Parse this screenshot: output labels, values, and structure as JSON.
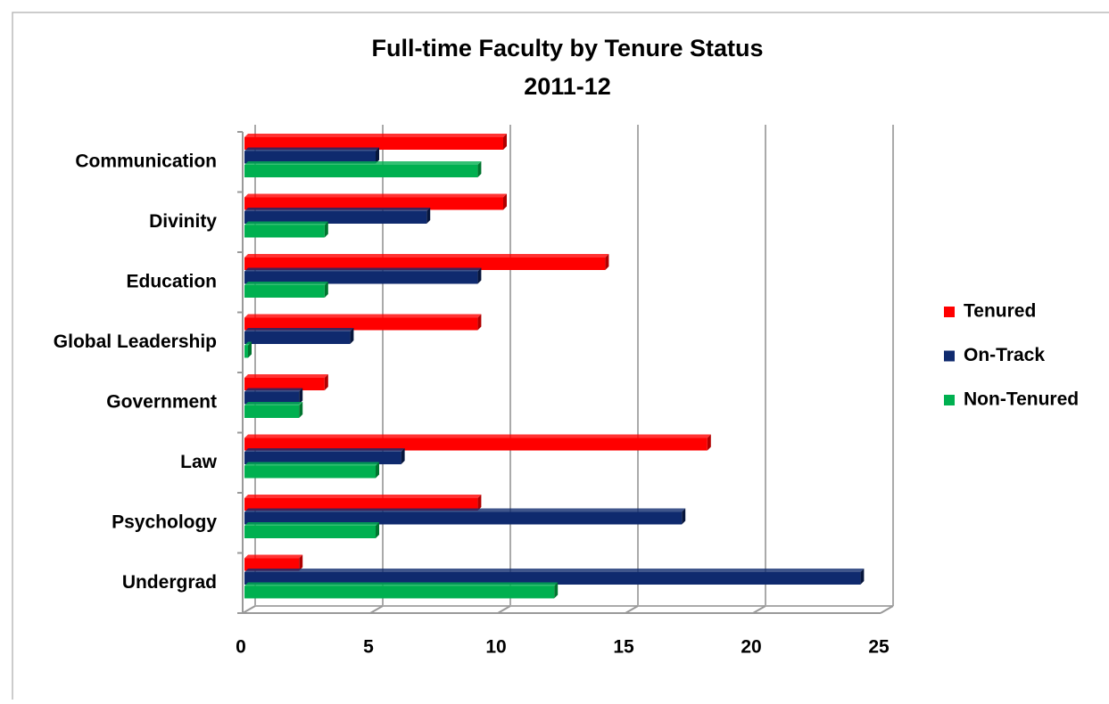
{
  "chart_data": {
    "type": "bar",
    "orientation": "horizontal",
    "title": "Full-time Faculty by Tenure Status",
    "subtitle": "2011-12",
    "categories": [
      "Communication",
      "Divinity",
      "Education",
      "Global Leadership",
      "Government",
      "Law",
      "Psychology",
      "Undergrad"
    ],
    "series": [
      {
        "name": "Tenured",
        "color": "#ff0000",
        "values": [
          10,
          10,
          14,
          9,
          3,
          18,
          9,
          2
        ]
      },
      {
        "name": "On-Track",
        "color": "#0f2a6e",
        "values": [
          5,
          7,
          9,
          4,
          2,
          6,
          17,
          24
        ]
      },
      {
        "name": "Non-Tenured",
        "color": "#00b050",
        "values": [
          9,
          3,
          3,
          0,
          2,
          5,
          5,
          12
        ]
      }
    ],
    "xlim": [
      0,
      25
    ],
    "xticks": [
      0,
      5,
      10,
      15,
      20,
      25
    ],
    "grid": true,
    "legend": "right"
  }
}
